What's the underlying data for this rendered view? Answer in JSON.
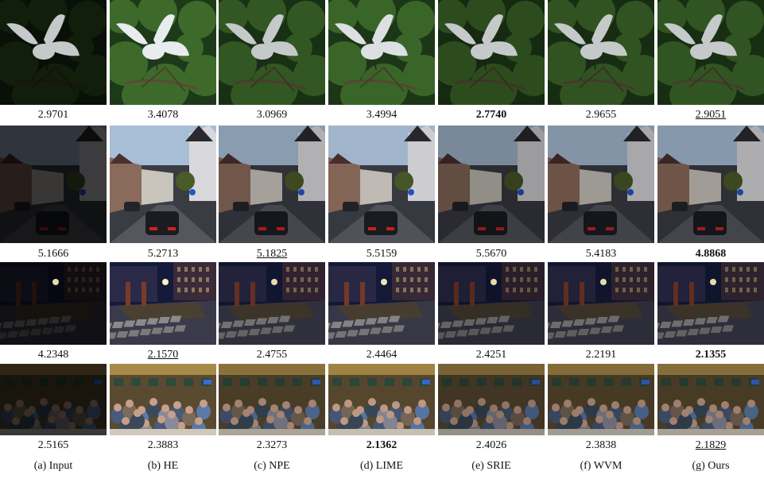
{
  "columns": [
    {
      "caption": "(a) Input"
    },
    {
      "caption": "(b) HE"
    },
    {
      "caption": "(c) NPE"
    },
    {
      "caption": "(d) LIME"
    },
    {
      "caption": "(e) SRIE"
    },
    {
      "caption": "(f) WVM"
    },
    {
      "caption": "(g) Ours"
    }
  ],
  "rows": [
    {
      "scene": "egret",
      "scores": [
        "2.9701",
        "3.4078",
        "3.0969",
        "3.4994",
        "2.7740",
        "2.9655",
        "2.9051"
      ],
      "best_index": 4,
      "second_index": 6
    },
    {
      "scene": "street",
      "scores": [
        "5.1666",
        "5.2713",
        "5.1825",
        "5.5159",
        "5.5670",
        "5.4183",
        "4.8868"
      ],
      "best_index": 6,
      "second_index": 2
    },
    {
      "scene": "courtyard-night",
      "scores": [
        "4.2348",
        "2.1570",
        "2.4755",
        "2.4464",
        "2.4251",
        "2.2191",
        "2.1355"
      ],
      "best_index": 6,
      "second_index": 1
    },
    {
      "scene": "restaurant",
      "scores": [
        "2.5165",
        "2.3883",
        "2.3273",
        "2.1362",
        "2.4026",
        "2.3838",
        "2.1829"
      ],
      "best_index": 3,
      "second_index": 6
    }
  ],
  "brightness": [
    0.28,
    1.0,
    0.82,
    0.95,
    0.72,
    0.78,
    0.8
  ]
}
